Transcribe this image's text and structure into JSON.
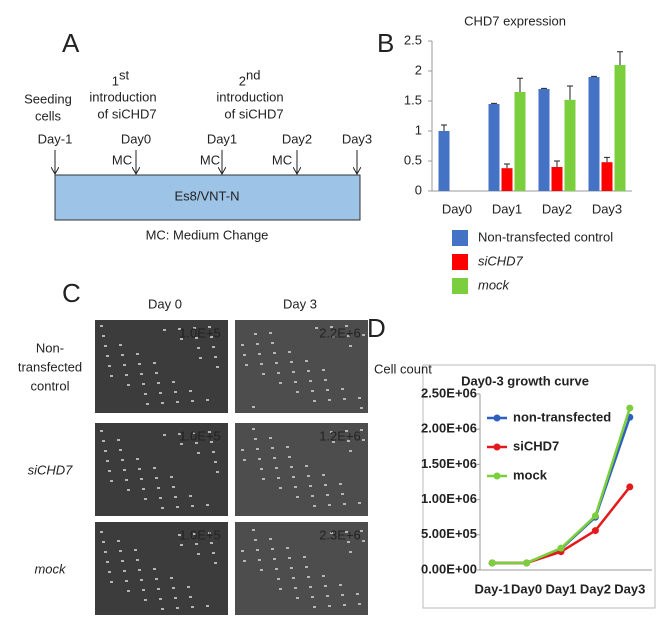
{
  "panel_a": {
    "letter": "A",
    "seeding": [
      "Seeding",
      "cells"
    ],
    "first": {
      "number": "1",
      "suffix": "st",
      "lines": [
        "introduction",
        "of siCHD7"
      ]
    },
    "second": {
      "number": "2",
      "suffix": "nd",
      "lines": [
        "introduction",
        "of siCHD7"
      ]
    },
    "days": [
      "Day-1",
      "Day0",
      "Day1",
      "Day2",
      "Day3"
    ],
    "mc": [
      "MC",
      "MC",
      "MC"
    ],
    "medium": "Es8/VNT-N",
    "footnote": "MC: Medium Change"
  },
  "panel_b": {
    "letter": "B"
  },
  "panel_c": {
    "letter": "C",
    "columns": [
      "Day 0",
      "Day 3"
    ],
    "rows": [
      {
        "label": [
          "Non-",
          "transfected",
          "control"
        ],
        "counts": [
          "1.0E+5",
          "2.2E+6"
        ]
      },
      {
        "label": [
          "siCHD7"
        ],
        "counts": [
          "1.0E+5",
          "1.2E+6"
        ]
      },
      {
        "label": [
          "mock"
        ],
        "counts": [
          "1.0E+5",
          "2.3E+6"
        ]
      }
    ]
  },
  "panel_d": {
    "letter": "D"
  },
  "chart_data": [
    {
      "type": "bar",
      "title": "CHD7 expression",
      "categories": [
        "Day0",
        "Day1",
        "Day2",
        "Day3"
      ],
      "ylim": [
        0,
        2.5
      ],
      "yticks": [
        0,
        0.5,
        1,
        1.5,
        2,
        2.5
      ],
      "series": [
        {
          "name": "Non-transfected control",
          "color": "#4472c4",
          "values": [
            1.0,
            1.45,
            1.7,
            1.9
          ],
          "errors": [
            0.1,
            0.01,
            0.01,
            0.01
          ]
        },
        {
          "name": "siCHD7",
          "color": "#ff0000",
          "values": [
            null,
            0.38,
            0.4,
            0.48
          ],
          "errors": [
            null,
            0.07,
            0.1,
            0.08
          ]
        },
        {
          "name": "mock",
          "color": "#7ccf3c",
          "values": [
            null,
            1.65,
            1.52,
            2.1
          ],
          "errors": [
            null,
            0.23,
            0.23,
            0.22
          ]
        }
      ]
    },
    {
      "type": "line",
      "title": "Day0-3 growth curve",
      "y_label": "Cell count",
      "categories": [
        "Day-1",
        "Day0",
        "Day1",
        "Day2",
        "Day3"
      ],
      "ylim": [
        0,
        2500000
      ],
      "yticks": [
        {
          "value": 0,
          "label": "0.00E+00"
        },
        {
          "value": 500000,
          "label": "5.00E+05"
        },
        {
          "value": 1000000,
          "label": "1.00E+06"
        },
        {
          "value": 1500000,
          "label": "1.50E+06"
        },
        {
          "value": 2000000,
          "label": "2.00E+06"
        },
        {
          "value": 2500000,
          "label": "2.50E+06"
        }
      ],
      "series": [
        {
          "name": "non-transfected",
          "color": "#2e5fbf",
          "values": [
            100000,
            100000,
            300000,
            750000,
            2170000
          ]
        },
        {
          "name": "siCHD7",
          "color": "#e31a1c",
          "values": [
            100000,
            100000,
            260000,
            560000,
            1180000
          ]
        },
        {
          "name": "mock",
          "color": "#7ccf3c",
          "values": [
            100000,
            100000,
            310000,
            770000,
            2300000
          ]
        }
      ]
    }
  ]
}
